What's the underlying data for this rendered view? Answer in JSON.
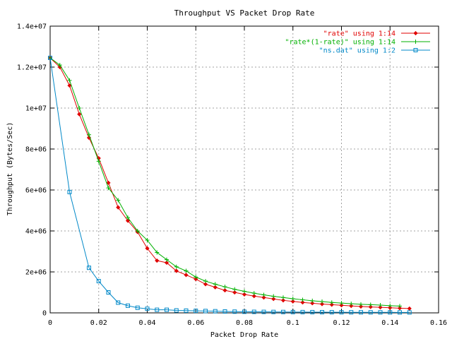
{
  "chart_data": {
    "type": "line",
    "title": "Throughput VS Packet Drop Rate",
    "xlabel": "Packet Drop Rate",
    "ylabel": "Throughput (Bytes/Sec)",
    "xlim": [
      0,
      0.16
    ],
    "ylim": [
      0,
      14000000
    ],
    "x_ticks": [
      0,
      0.02,
      0.04,
      0.06,
      0.08,
      0.1,
      0.12,
      0.14,
      0.16
    ],
    "x_tick_labels": [
      "0",
      "0.02",
      "0.04",
      "0.06",
      "0.08",
      "0.1",
      "0.12",
      "0.14",
      "0.16"
    ],
    "y_ticks": [
      0,
      2000000,
      4000000,
      6000000,
      8000000,
      10000000,
      12000000,
      14000000
    ],
    "y_tick_labels": [
      "0",
      "2e+06",
      "4e+06",
      "6e+06",
      "8e+06",
      "1e+07",
      "1.2e+07",
      "1.4e+07"
    ],
    "grid": true,
    "legend_position": "top-right",
    "series": [
      {
        "name": "\"rate\" using 1:14",
        "color": "#e00000",
        "marker": "diamond",
        "x": [
          0,
          0.004,
          0.008,
          0.012,
          0.016,
          0.02,
          0.024,
          0.028,
          0.032,
          0.036,
          0.04,
          0.044,
          0.048,
          0.052,
          0.056,
          0.06,
          0.064,
          0.068,
          0.072,
          0.076,
          0.08,
          0.084,
          0.088,
          0.092,
          0.096,
          0.1,
          0.104,
          0.108,
          0.112,
          0.116,
          0.12,
          0.124,
          0.128,
          0.132,
          0.136,
          0.14,
          0.144,
          0.148
        ],
        "y": [
          12450000,
          12000000,
          11100000,
          9700000,
          8550000,
          7550000,
          6350000,
          5150000,
          4500000,
          3950000,
          3150000,
          2550000,
          2450000,
          2050000,
          1850000,
          1650000,
          1400000,
          1250000,
          1100000,
          1000000,
          900000,
          820000,
          750000,
          680000,
          610000,
          560000,
          510000,
          470000,
          430000,
          400000,
          370000,
          340000,
          310000,
          290000,
          270000,
          250000,
          230000,
          210000
        ]
      },
      {
        "name": "\"rate*(1-rate)\" using 1:14",
        "color": "#00b000",
        "marker": "plus",
        "x": [
          0,
          0.004,
          0.008,
          0.012,
          0.016,
          0.02,
          0.024,
          0.028,
          0.032,
          0.036,
          0.04,
          0.044,
          0.048,
          0.052,
          0.056,
          0.06,
          0.064,
          0.068,
          0.072,
          0.076,
          0.08,
          0.084,
          0.088,
          0.092,
          0.096,
          0.1,
          0.104,
          0.108,
          0.112,
          0.116,
          0.12,
          0.124,
          0.128,
          0.132,
          0.136,
          0.14,
          0.144
        ],
        "y": [
          12450000,
          12100000,
          11350000,
          10000000,
          8700000,
          7400000,
          6100000,
          5500000,
          4650000,
          4000000,
          3550000,
          2950000,
          2600000,
          2250000,
          2050000,
          1750000,
          1550000,
          1400000,
          1270000,
          1150000,
          1050000,
          960000,
          880000,
          810000,
          750000,
          690000,
          640000,
          590000,
          550000,
          510000,
          480000,
          450000,
          420000,
          400000,
          380000,
          350000,
          330000
        ]
      },
      {
        "name": "\"ns.dat\" using 1:2",
        "color": "#0088c8",
        "marker": "square",
        "x": [
          0,
          0.008,
          0.016,
          0.02,
          0.024,
          0.028,
          0.032,
          0.036,
          0.04,
          0.044,
          0.048,
          0.052,
          0.056,
          0.06,
          0.064,
          0.068,
          0.072,
          0.076,
          0.08,
          0.084,
          0.088,
          0.092,
          0.096,
          0.1,
          0.104,
          0.108,
          0.112,
          0.116,
          0.12,
          0.124,
          0.128,
          0.132,
          0.136,
          0.14,
          0.144,
          0.148
        ],
        "y": [
          12450000,
          5900000,
          2200000,
          1550000,
          1000000,
          500000,
          350000,
          250000,
          200000,
          150000,
          150000,
          120000,
          110000,
          100000,
          90000,
          80000,
          70000,
          60000,
          55000,
          50000,
          48000,
          45000,
          43000,
          40000,
          38000,
          36000,
          34000,
          32000,
          30000,
          28000,
          27000,
          26000,
          25000,
          24000,
          23000,
          22000
        ]
      }
    ]
  }
}
